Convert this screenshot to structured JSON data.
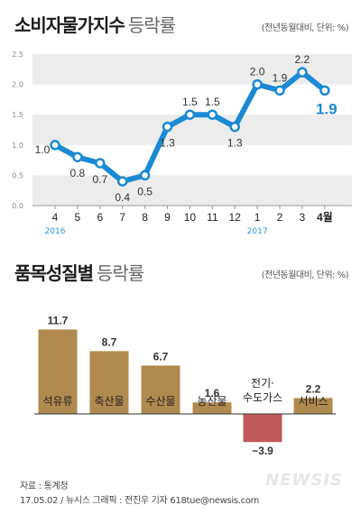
{
  "section1": {
    "title": "소비자물가지수",
    "subtitle": "등락률",
    "note": "(전년동월대비, 단위: %)"
  },
  "section2": {
    "title": "품목성질별",
    "subtitle": "등락률",
    "note": "(전년동월대비, 단위: %)"
  },
  "footer": {
    "source": "자료 : 통계청",
    "credit": "17.05.02 / 뉴시스 그래픽 : 전진우 기자 618tue@newsis.com"
  },
  "watermark": "NEWSIS",
  "colors": {
    "line": "#1a8ad4",
    "bar": "#b08a4e",
    "negative": "#c05a58",
    "year": "#2f95d6"
  },
  "chart_data": [
    {
      "type": "line",
      "x": [
        "4",
        "5",
        "6",
        "7",
        "8",
        "9",
        "10",
        "11",
        "12",
        "1",
        "2",
        "3",
        "4월"
      ],
      "year_labels": [
        {
          "label": "2016",
          "index": 0
        },
        {
          "label": "2017",
          "index": 9
        }
      ],
      "series": [
        {
          "values": [
            1.0,
            0.8,
            0.7,
            0.4,
            0.5,
            1.3,
            1.5,
            1.5,
            1.3,
            2.0,
            1.9,
            2.2,
            1.9
          ]
        }
      ],
      "data_labels": [
        "1.0",
        "0.8",
        "0.7",
        "0.4",
        "0.5",
        "1.3",
        "1.5",
        "1.5",
        "1.3",
        "2.0",
        "1.9",
        "2.2",
        "1.9"
      ],
      "yticks": [
        "0.0",
        "0.5",
        "1.0",
        "1.5",
        "2.0",
        "2.5"
      ],
      "ylim": [
        0,
        2.5
      ],
      "grid": "alternating bands"
    },
    {
      "type": "bar",
      "categories": [
        [
          "석유류"
        ],
        [
          "축산물"
        ],
        [
          "수산물"
        ],
        [
          "농산물"
        ],
        [
          "전기·",
          "수도가스"
        ],
        [
          "서비스"
        ]
      ],
      "values": [
        11.7,
        8.7,
        6.7,
        1.6,
        -3.9,
        2.2
      ],
      "data_labels": [
        "11.7",
        "8.7",
        "6.7",
        "1.6",
        "−3.9",
        "2.2"
      ]
    }
  ]
}
